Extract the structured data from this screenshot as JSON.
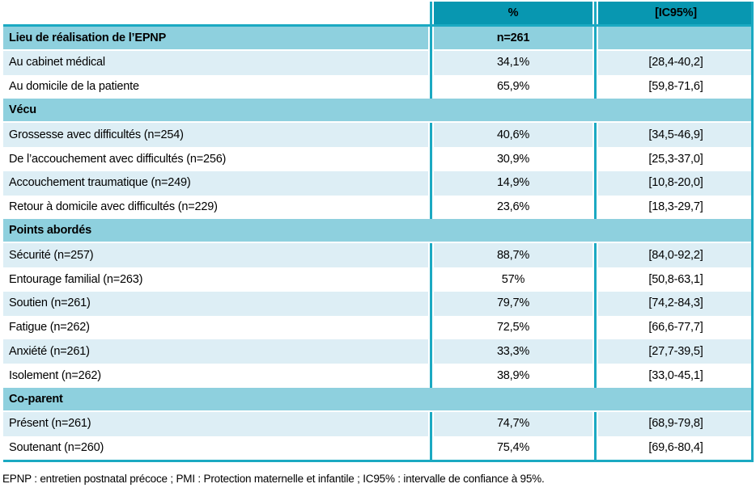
{
  "table": {
    "columns": {
      "first": "",
      "percent": "%",
      "ci": "[IC95%]"
    },
    "sections": [
      {
        "label": "Lieu de réalisation de l’EPNP",
        "n": "n=261",
        "span": false,
        "rows": [
          {
            "label": "Au cabinet médical",
            "pct": "34,1%",
            "ci": "[28,4-40,2]"
          },
          {
            "label": "Au domicile de la patiente",
            "pct": "65,9%",
            "ci": "[59,8-71,6]"
          }
        ]
      },
      {
        "label": "Vécu",
        "span": true,
        "rows": [
          {
            "label": "Grossesse avec difficultés (n=254)",
            "pct": "40,6%",
            "ci": "[34,5-46,9]"
          },
          {
            "label": "De l’accouchement avec difficultés (n=256)",
            "pct": "30,9%",
            "ci": "[25,3-37,0]"
          },
          {
            "label": "Accouchement traumatique (n=249)",
            "pct": "14,9%",
            "ci": "[10,8-20,0]"
          },
          {
            "label": "Retour à domicile avec difficultés (n=229)",
            "pct": "23,6%",
            "ci": "[18,3-29,7]"
          }
        ]
      },
      {
        "label": "Points abordés",
        "span": true,
        "rows": [
          {
            "label": "Sécurité (n=257)",
            "pct": "88,7%",
            "ci": "[84,0-92,2]"
          },
          {
            "label": "Entourage familial (n=263)",
            "pct": "57%",
            "ci": "[50,8-63,1]"
          },
          {
            "label": "Soutien (n=261)",
            "pct": "79,7%",
            "ci": "[74,2-84,3]"
          },
          {
            "label": "Fatigue (n=262)",
            "pct": "72,5%",
            "ci": "[66,6-77,7]"
          },
          {
            "label": "Anxiété (n=261)",
            "pct": "33,3%",
            "ci": "[27,7-39,5]"
          },
          {
            "label": "Isolement (n=262)",
            "pct": "38,9%",
            "ci": "[33,0-45,1]"
          }
        ]
      },
      {
        "label": "Co-parent",
        "span": true,
        "rows": [
          {
            "label": "Présent (n=261)",
            "pct": "74,7%",
            "ci": "[68,9-79,8]"
          },
          {
            "label": "Soutenant (n=260)",
            "pct": "75,4%",
            "ci": "[69,6-80,4]"
          }
        ]
      }
    ],
    "footnote": "EPNP : entretien postnatal précoce ; PMI : Protection maternelle et infantile ; IC95% : intervalle de confiance à 95%."
  },
  "colors": {
    "header_bg": "#0897b1",
    "section_bg": "#8ed0de",
    "row_light_bg": "#ddeef5",
    "row_white_bg": "#ffffff",
    "grid_line": "#1ba9c2",
    "text": "#000000"
  }
}
